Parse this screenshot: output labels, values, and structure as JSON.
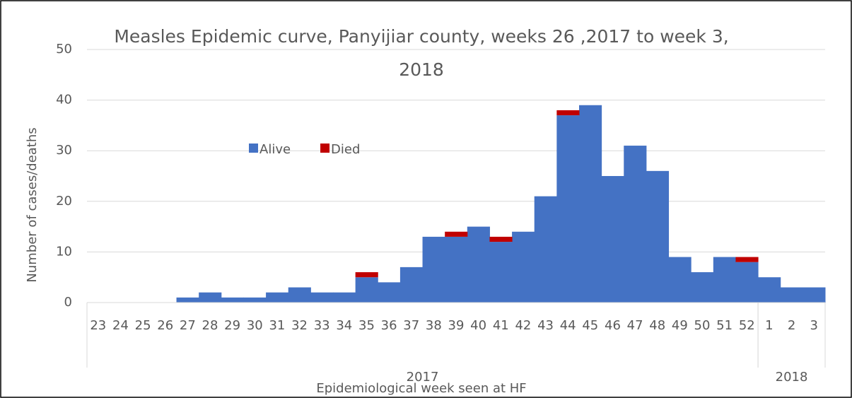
{
  "chart_data": {
    "type": "stacked_bar",
    "title": "Measles Epidemic curve, Panyijiar county, weeks 26 ,2017 to week 3, 2018",
    "x_label": "Epidemiological week seen at HF",
    "y_label": "Number of cases/deaths",
    "category_groups": [
      {
        "label": "2017",
        "categories": [
          "23",
          "24",
          "25",
          "26",
          "27",
          "28",
          "29",
          "30",
          "31",
          "32",
          "33",
          "34",
          "35",
          "36",
          "37",
          "38",
          "39",
          "40",
          "41",
          "42",
          "43",
          "44",
          "45",
          "46",
          "47",
          "48",
          "49",
          "50",
          "51",
          "52"
        ]
      },
      {
        "label": "2018",
        "categories": [
          "1",
          "2",
          "3"
        ]
      }
    ],
    "series": [
      {
        "name": "Alive",
        "color": "#4472c4",
        "values": [
          0,
          0,
          0,
          0,
          1,
          2,
          1,
          1,
          2,
          3,
          2,
          2,
          5,
          4,
          7,
          13,
          13,
          15,
          12,
          14,
          21,
          37,
          39,
          25,
          31,
          26,
          9,
          6,
          9,
          8,
          5,
          3,
          3
        ]
      },
      {
        "name": "Died",
        "color": "#c00000",
        "values": [
          0,
          0,
          0,
          0,
          0,
          0,
          0,
          0,
          0,
          0,
          0,
          0,
          1,
          0,
          0,
          0,
          1,
          0,
          1,
          0,
          0,
          1,
          0,
          0,
          0,
          0,
          0,
          0,
          0,
          1,
          0,
          0,
          0
        ]
      }
    ],
    "ylim": [
      0,
      50
    ],
    "yticks": [
      0,
      10,
      20,
      30,
      40,
      50
    ],
    "grid": true
  }
}
